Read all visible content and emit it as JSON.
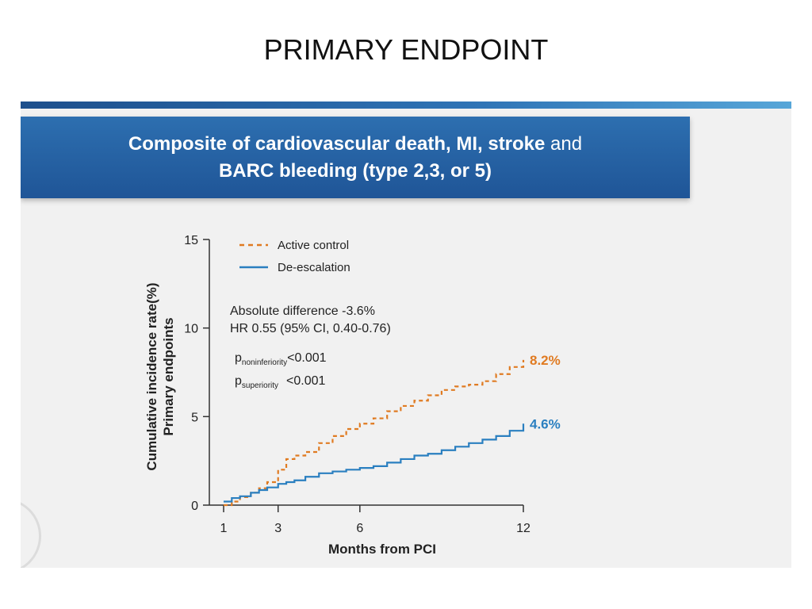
{
  "slide": {
    "title": "PRIMARY ENDPOINT"
  },
  "header": {
    "line1_bold": "Composite of cardiovascular death, MI, stroke",
    "line1_light": "and",
    "line2": "BARC bleeding (type 2,3, or 5)"
  },
  "colors": {
    "active_control": "#e07b22",
    "de_escalation": "#2a7fc0",
    "header": "#2563a6"
  },
  "chart_data": {
    "type": "line",
    "xlabel": "Months from PCI",
    "ylabel_line1": "Cumulative incidence rate(%)",
    "ylabel_line2": "Primary endpoints",
    "xlim": [
      1,
      12
    ],
    "ylim": [
      0,
      15
    ],
    "x_ticks": [
      1,
      3,
      6,
      12
    ],
    "y_ticks": [
      0,
      5,
      10,
      15
    ],
    "legend_position": "top-left",
    "series": [
      {
        "name": "Active control",
        "style": "dashed",
        "x": [
          1,
          1.3,
          1.6,
          2,
          2.3,
          2.6,
          3,
          3.3,
          3.6,
          4,
          4.5,
          5,
          5.5,
          6,
          6.5,
          7,
          7.5,
          8,
          8.5,
          9,
          9.5,
          10,
          10.5,
          11,
          11.5,
          12
        ],
        "y": [
          0,
          0.2,
          0.45,
          0.7,
          0.95,
          1.3,
          2.0,
          2.6,
          2.8,
          3.0,
          3.5,
          3.9,
          4.3,
          4.6,
          4.9,
          5.3,
          5.6,
          5.9,
          6.2,
          6.5,
          6.7,
          6.8,
          7.0,
          7.4,
          7.8,
          8.2
        ],
        "end_label": "8.2%"
      },
      {
        "name": "De-escalation",
        "style": "solid",
        "x": [
          1,
          1.3,
          1.6,
          2,
          2.3,
          2.6,
          3,
          3.3,
          3.6,
          4,
          4.5,
          5,
          5.5,
          6,
          6.5,
          7,
          7.5,
          8,
          8.5,
          9,
          9.5,
          10,
          10.5,
          11,
          11.5,
          12
        ],
        "y": [
          0.2,
          0.4,
          0.5,
          0.7,
          0.85,
          1.0,
          1.2,
          1.3,
          1.4,
          1.6,
          1.8,
          1.9,
          2.0,
          2.1,
          2.2,
          2.4,
          2.6,
          2.8,
          2.9,
          3.1,
          3.3,
          3.5,
          3.7,
          3.9,
          4.2,
          4.6
        ],
        "end_label": "4.6%"
      }
    ],
    "annotations": {
      "abs_diff": "Absolute difference -3.6%",
      "hr": "HR 0.55 (95% CI, 0.40-0.76)",
      "p_noninf_symbol": "p",
      "p_noninf_sub": "noninferiority",
      "p_noninf_value": "<0.001",
      "p_sup_symbol": "p",
      "p_sup_sub": "superiority",
      "p_sup_value": "<0.001"
    }
  }
}
